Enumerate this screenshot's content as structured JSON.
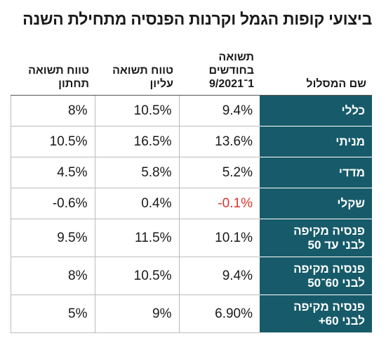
{
  "title": "ביצועי קופות הגמל וקרנות הפנסיה מתחילת השנה",
  "table": {
    "header": [
      [
        "שם המסלול"
      ],
      [
        "תשואה",
        "בחודשים",
        "1־9/2021"
      ],
      [
        "טווח תשואה",
        "עליון"
      ],
      [
        "טווח תשואה",
        "תחתון"
      ]
    ],
    "rows": [
      [
        [
          "כללי"
        ],
        "9.4%",
        "10.5%",
        "8%"
      ],
      [
        [
          "מניתי"
        ],
        "13.6%",
        "16.5%",
        "10.5%"
      ],
      [
        [
          "מדדי"
        ],
        "5.2%",
        "5.8%",
        "4.5%"
      ],
      [
        [
          "שקלי"
        ],
        "-0.1%",
        "0.4%",
        "-0.6%"
      ],
      [
        [
          "פנסיה מקיפה",
          "לבני עד 50"
        ],
        "10.1%",
        "11.5%",
        "9.5%"
      ],
      [
        [
          "פנסיה מקיפה",
          "לבני 60־50"
        ],
        "9.4%",
        "10.5%",
        "8%"
      ],
      [
        [
          "פנסיה מקיפה",
          "לבני 60+"
        ],
        "6.90%",
        "9%",
        "5%"
      ]
    ]
  }
}
